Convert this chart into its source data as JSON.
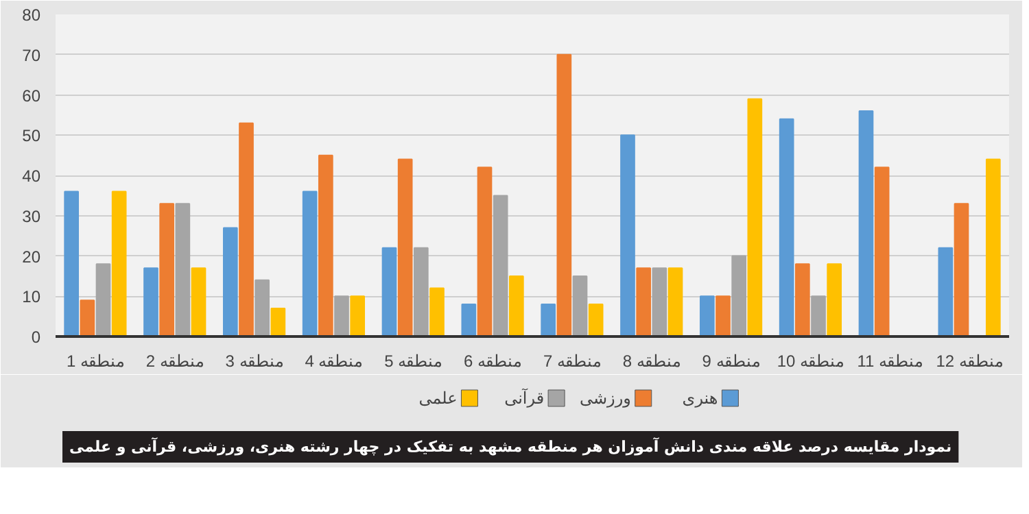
{
  "chart_data": {
    "type": "bar",
    "categories": [
      "منطقه 1",
      "منطقه 2",
      "منطقه 3",
      "منطقه 4",
      "منطقه 5",
      "منطقه 6",
      "منطقه 7",
      "منطقه 8",
      "منطقه 9",
      "منطقه 10",
      "منطقه 11",
      "منطقه 12"
    ],
    "series": [
      {
        "name": "هنری",
        "color": "#5b9bd5",
        "values": [
          36,
          17,
          27,
          36,
          22,
          8,
          8,
          50,
          10,
          54,
          56,
          22
        ]
      },
      {
        "name": "ورزشی",
        "color": "#ed7d31",
        "values": [
          9,
          33,
          53,
          45,
          44,
          42,
          70,
          17,
          10,
          18,
          42,
          33
        ]
      },
      {
        "name": "قرآنی",
        "color": "#a5a5a5",
        "values": [
          18,
          33,
          14,
          10,
          22,
          35,
          15,
          17,
          20,
          10,
          0,
          0
        ]
      },
      {
        "name": "علمی",
        "color": "#ffc000",
        "values": [
          36,
          17,
          7,
          10,
          12,
          15,
          8,
          17,
          59,
          18,
          0,
          44
        ]
      }
    ],
    "ylim": [
      0,
      80
    ],
    "yticks": [
      0,
      10,
      20,
      30,
      40,
      50,
      60,
      70,
      80
    ],
    "grid": "y",
    "legend": "bottom",
    "annotations": [
      "نمودار مقایسه درصد علاقه مندی دانش آموزان هر منطقه مشهد به تفکیک در چهار رشته هنری، ورزشی، قرآنی و علمی"
    ]
  }
}
